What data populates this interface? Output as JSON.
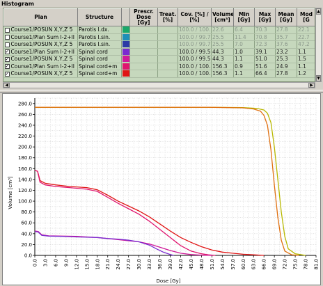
{
  "panel_title": "Histogram",
  "columns": [
    "Plan",
    "Structure",
    "",
    "Prescr. Dose [Gy]",
    "Treat. [%]",
    "Cov. [%] / [%]",
    "Volume [cm³]",
    "Min [Gy]",
    "Max [Gy]",
    "Mean [Gy]",
    "Mod [G"
  ],
  "rows": [
    {
      "checked": false,
      "plan": "Course1/POSUN X,Y,Z 5",
      "structure": "Parotis l.dx.",
      "color": "#1aa86a",
      "cov": "100.0 / 100.0",
      "volume": "22.6",
      "min": "6.4",
      "max": "70.3",
      "mean": "27.8",
      "mod": "22.1"
    },
    {
      "checked": false,
      "plan": "Course1/Plan Sum I-2+II",
      "structure": "Parotis l.sin.",
      "color": "#1f8fb8",
      "cov": "100.0 / 99.7",
      "volume": "25.5",
      "min": "11.4",
      "max": "70.8",
      "mean": "35.7",
      "mod": "22.7"
    },
    {
      "checked": false,
      "plan": "Course1/POSUN X,Y,Z 5",
      "structure": "Parotis l.sin.",
      "color": "#2d3aa6",
      "cov": "100.0 / 99.7",
      "volume": "25.5",
      "min": "7.0",
      "max": "72.3",
      "mean": "37.6",
      "mod": "47.2"
    },
    {
      "checked": true,
      "plan": "Course1/Plan Sum I-2+II",
      "structure": "Spinal cord",
      "color": "#7a2ad0",
      "cov": "100.0 / 99.5",
      "volume": "44.3",
      "min": "1.0",
      "max": "39.1",
      "mean": "23.2",
      "mod": "1.1"
    },
    {
      "checked": true,
      "plan": "Course1/POSUN X,Y,Z 5",
      "structure": "Spinal cord",
      "color": "#d0199a",
      "cov": "100.0 / 99.5",
      "volume": "44.3",
      "min": "1.1",
      "max": "51.0",
      "mean": "25.3",
      "mod": "1.5"
    },
    {
      "checked": true,
      "plan": "Course1/Plan Sum I-2+II",
      "structure": "Spinal cord+m",
      "color": "#e0146e",
      "cov": "100.0 / 100.0",
      "volume": "156.3",
      "min": "0.9",
      "max": "51.6",
      "mean": "24.9",
      "mod": "1.1"
    },
    {
      "checked": true,
      "plan": "Course1/POSUN X,Y,Z 5",
      "structure": "Spinal cord+m",
      "color": "#e01414",
      "cov": "100.0 / 100.0",
      "volume": "156.3",
      "min": "1.1",
      "max": "66.4",
      "mean": "27.8",
      "mod": "1.2"
    }
  ],
  "chart_data": {
    "type": "line",
    "title": "",
    "xlabel": "Dose [Gy]",
    "ylabel": "Volume [cm³]",
    "xlim": [
      0,
      81
    ],
    "ylim": [
      0,
      290
    ],
    "x_ticks": [
      "0.0",
      "3.0",
      "6.0",
      "9.0",
      "12.0",
      "15.0",
      "18.0",
      "21.0",
      "24.0",
      "27.0",
      "30.0",
      "33.0",
      "36.0",
      "39.0",
      "42.0",
      "45.0",
      "48.0",
      "51.0",
      "54.0",
      "57.0",
      "60.0",
      "63.0",
      "66.0",
      "69.0",
      "72.0",
      "75.0",
      "78.0",
      "81.0"
    ],
    "y_ticks": [
      "0.0",
      "20.0",
      "40.0",
      "60.0",
      "80.0",
      "100.0",
      "120.0",
      "140.0",
      "160.0",
      "180.0",
      "200.0",
      "220.0",
      "240.0",
      "260.0",
      "280.0"
    ],
    "grid": true,
    "series": [
      {
        "color": "#b8b800",
        "points": [
          [
            0,
            273
          ],
          [
            50,
            273
          ],
          [
            60,
            272.5
          ],
          [
            64,
            271
          ],
          [
            66,
            268
          ],
          [
            67,
            262
          ],
          [
            68,
            245
          ],
          [
            69,
            200
          ],
          [
            70,
            140
          ],
          [
            71,
            80
          ],
          [
            72,
            35
          ],
          [
            73,
            12
          ],
          [
            75,
            3
          ],
          [
            78,
            0
          ]
        ]
      },
      {
        "color": "#e07010",
        "points": [
          [
            0,
            273
          ],
          [
            50,
            273
          ],
          [
            60,
            272
          ],
          [
            63,
            270
          ],
          [
            65,
            266
          ],
          [
            66,
            258
          ],
          [
            67,
            240
          ],
          [
            68,
            195
          ],
          [
            69,
            130
          ],
          [
            70,
            70
          ],
          [
            71,
            28
          ],
          [
            72,
            8
          ],
          [
            74,
            1
          ],
          [
            76,
            0
          ]
        ]
      },
      {
        "color": "#e01414",
        "points": [
          [
            0,
            157
          ],
          [
            0.8,
            155
          ],
          [
            1.5,
            138
          ],
          [
            3,
            133
          ],
          [
            6,
            130
          ],
          [
            10,
            127
          ],
          [
            15,
            125
          ],
          [
            18,
            121
          ],
          [
            21,
            111
          ],
          [
            24,
            100
          ],
          [
            27,
            91
          ],
          [
            30,
            82
          ],
          [
            33,
            71
          ],
          [
            36,
            58
          ],
          [
            39,
            45
          ],
          [
            42,
            33
          ],
          [
            45,
            24
          ],
          [
            48,
            16
          ],
          [
            51,
            10
          ],
          [
            54,
            6
          ],
          [
            57,
            4
          ],
          [
            60,
            2
          ],
          [
            63,
            1
          ],
          [
            66,
            0
          ]
        ]
      },
      {
        "color": "#e0146e",
        "points": [
          [
            0,
            157
          ],
          [
            0.8,
            155
          ],
          [
            1.5,
            135
          ],
          [
            3,
            130
          ],
          [
            6,
            127
          ],
          [
            10,
            125
          ],
          [
            15,
            122
          ],
          [
            18,
            118
          ],
          [
            21,
            107
          ],
          [
            24,
            96
          ],
          [
            27,
            86
          ],
          [
            30,
            76
          ],
          [
            33,
            63
          ],
          [
            36,
            48
          ],
          [
            39,
            33
          ],
          [
            42,
            18
          ],
          [
            45,
            8
          ],
          [
            48,
            3
          ],
          [
            50,
            1
          ],
          [
            52,
            0
          ]
        ]
      },
      {
        "color": "#d0199a",
        "points": [
          [
            0,
            45
          ],
          [
            1,
            44
          ],
          [
            2,
            38
          ],
          [
            4,
            36
          ],
          [
            8,
            35.5
          ],
          [
            12,
            35
          ],
          [
            15,
            34
          ],
          [
            18,
            33
          ],
          [
            21,
            31
          ],
          [
            24,
            29
          ],
          [
            27,
            27
          ],
          [
            30,
            25
          ],
          [
            33,
            21
          ],
          [
            36,
            15
          ],
          [
            39,
            9
          ],
          [
            42,
            4
          ],
          [
            45,
            1.5
          ],
          [
            48,
            0.5
          ],
          [
            51,
            0
          ]
        ]
      },
      {
        "color": "#7a2ad0",
        "points": [
          [
            0,
            44
          ],
          [
            1,
            43
          ],
          [
            2,
            37
          ],
          [
            4,
            35.5
          ],
          [
            8,
            35
          ],
          [
            12,
            34
          ],
          [
            15,
            33.5
          ],
          [
            18,
            33
          ],
          [
            21,
            31
          ],
          [
            24,
            30
          ],
          [
            27,
            28
          ],
          [
            30,
            25
          ],
          [
            33,
            19
          ],
          [
            35,
            12
          ],
          [
            37,
            6
          ],
          [
            39,
            1.5
          ],
          [
            40,
            0
          ]
        ]
      }
    ]
  }
}
